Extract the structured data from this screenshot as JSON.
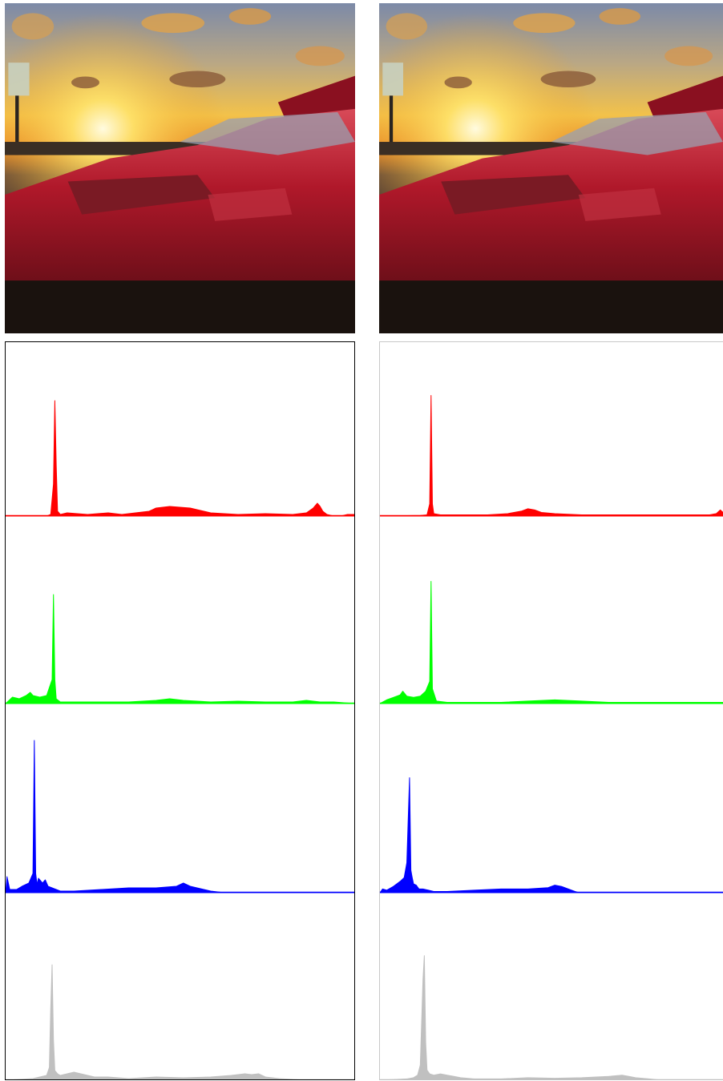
{
  "colors": {
    "red": "#ff0000",
    "green": "#00ff00",
    "blue": "#0000ff",
    "gray": "#c0c0c0"
  },
  "images": [
    {
      "icon": "red-sports-car-at-sunset-photo",
      "description": "original"
    },
    {
      "icon": "red-sports-car-at-sunset-photo",
      "description": "processed"
    }
  ],
  "chart_data": [
    {
      "type": "area",
      "xlim": [
        0,
        255
      ],
      "ylim": [
        0,
        1
      ],
      "series": [
        {
          "color": "#ff0000",
          "x": [
            0,
            30,
            33,
            35,
            36,
            37,
            38,
            40,
            45,
            60,
            75,
            85,
            95,
            105,
            110,
            120,
            135,
            150,
            170,
            190,
            210,
            220,
            225,
            228,
            230,
            232,
            235,
            240,
            245,
            250,
            255
          ],
          "y": [
            0,
            0,
            0.01,
            0.2,
            0.72,
            0.32,
            0.03,
            0.01,
            0.02,
            0.01,
            0.02,
            0.01,
            0.02,
            0.03,
            0.05,
            0.06,
            0.05,
            0.02,
            0.01,
            0.015,
            0.01,
            0.02,
            0.05,
            0.08,
            0.06,
            0.03,
            0.01,
            0,
            0,
            0.01,
            0.01
          ]
        },
        {
          "color": "#00ff00",
          "x": [
            0,
            5,
            10,
            15,
            18,
            20,
            25,
            30,
            34,
            35,
            36,
            37,
            40,
            50,
            70,
            90,
            110,
            120,
            130,
            150,
            170,
            190,
            210,
            220,
            230,
            240,
            255
          ],
          "y": [
            0,
            0.04,
            0.03,
            0.05,
            0.07,
            0.05,
            0.04,
            0.05,
            0.15,
            0.68,
            0.15,
            0.03,
            0.01,
            0.01,
            0.01,
            0.01,
            0.02,
            0.03,
            0.02,
            0.01,
            0.015,
            0.01,
            0.01,
            0.02,
            0.01,
            0.01,
            0
          ]
        },
        {
          "color": "#0000ff",
          "x": [
            0,
            1,
            3,
            8,
            12,
            17,
            20,
            21,
            22,
            23,
            24,
            27,
            29,
            31,
            34,
            40,
            50,
            70,
            90,
            110,
            125,
            130,
            135,
            140,
            150,
            155,
            160,
            255
          ],
          "y": [
            0,
            0.1,
            0.02,
            0.02,
            0.04,
            0.06,
            0.12,
            0.95,
            0.12,
            0.05,
            0.09,
            0.06,
            0.08,
            0.04,
            0.03,
            0.01,
            0.01,
            0.02,
            0.03,
            0.03,
            0.04,
            0.06,
            0.04,
            0.03,
            0.01,
            0.005,
            0,
            0
          ]
        },
        {
          "color": "#c0c0c0",
          "x": [
            0,
            20,
            25,
            30,
            32,
            33,
            34,
            35,
            36,
            38,
            40,
            45,
            50,
            55,
            60,
            65,
            75,
            90,
            110,
            130,
            150,
            165,
            175,
            180,
            185,
            190,
            200,
            220,
            255
          ],
          "y": [
            0,
            0.01,
            0.02,
            0.03,
            0.08,
            0.45,
            0.72,
            0.25,
            0.06,
            0.04,
            0.03,
            0.04,
            0.05,
            0.04,
            0.03,
            0.02,
            0.02,
            0.01,
            0.02,
            0.015,
            0.02,
            0.03,
            0.04,
            0.035,
            0.04,
            0.02,
            0.01,
            0,
            0
          ]
        }
      ]
    },
    {
      "type": "area",
      "xlim": [
        0,
        255
      ],
      "ylim": [
        0,
        1
      ],
      "series": [
        {
          "color": "#ff0000",
          "x": [
            0,
            30,
            35,
            37,
            38,
            39,
            40,
            45,
            60,
            80,
            95,
            105,
            110,
            115,
            120,
            130,
            150,
            170,
            190,
            210,
            230,
            245,
            250,
            253,
            255
          ],
          "y": [
            0,
            0.005,
            0.01,
            0.1,
            0.99,
            0.1,
            0.02,
            0.01,
            0.01,
            0.01,
            0.02,
            0.04,
            0.06,
            0.05,
            0.03,
            0.02,
            0.01,
            0.01,
            0.01,
            0.01,
            0.01,
            0.01,
            0.02,
            0.05,
            0.03
          ]
        },
        {
          "color": "#00ff00",
          "x": [
            0,
            5,
            10,
            15,
            17,
            20,
            25,
            30,
            34,
            37,
            38,
            39,
            42,
            50,
            70,
            90,
            110,
            130,
            150,
            170,
            190,
            210,
            230,
            240,
            255
          ],
          "y": [
            0,
            0.03,
            0.05,
            0.07,
            0.1,
            0.06,
            0.05,
            0.06,
            0.1,
            0.18,
            0.99,
            0.12,
            0.02,
            0.01,
            0.01,
            0.01,
            0.02,
            0.03,
            0.02,
            0.01,
            0.01,
            0.01,
            0.01,
            0.01,
            0.01
          ]
        },
        {
          "color": "#0000ff",
          "x": [
            0,
            2,
            5,
            10,
            15,
            18,
            20,
            22,
            23,
            24,
            25,
            27,
            29,
            32,
            36,
            40,
            50,
            70,
            90,
            110,
            125,
            130,
            135,
            140,
            145,
            148,
            255
          ],
          "y": [
            0,
            0.03,
            0.02,
            0.05,
            0.09,
            0.12,
            0.24,
            0.92,
            0.18,
            0.12,
            0.07,
            0.06,
            0.03,
            0.03,
            0.02,
            0.01,
            0.01,
            0.02,
            0.03,
            0.03,
            0.04,
            0.06,
            0.05,
            0.03,
            0.01,
            0,
            0
          ]
        },
        {
          "color": "#c0c0c0",
          "x": [
            0,
            20,
            25,
            28,
            30,
            32,
            33,
            34,
            35,
            37,
            40,
            45,
            50,
            55,
            60,
            70,
            90,
            110,
            130,
            150,
            170,
            180,
            185,
            190,
            200,
            210,
            255
          ],
          "y": [
            0,
            0.01,
            0.02,
            0.04,
            0.12,
            0.8,
            0.99,
            0.3,
            0.08,
            0.05,
            0.04,
            0.05,
            0.04,
            0.03,
            0.02,
            0.01,
            0.01,
            0.02,
            0.015,
            0.02,
            0.03,
            0.04,
            0.03,
            0.02,
            0.01,
            0,
            0
          ]
        }
      ]
    }
  ]
}
